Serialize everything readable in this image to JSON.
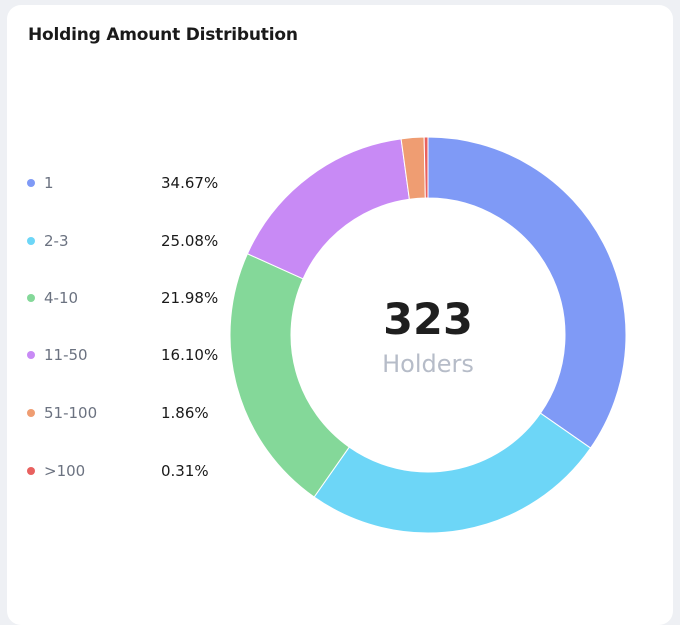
{
  "card": {
    "title": "Holding Amount Distribution"
  },
  "center": {
    "value": "323",
    "label": "Holders"
  },
  "legend": [
    {
      "label": "1",
      "value": "34.67%",
      "color": "#7f9af6"
    },
    {
      "label": "2-3",
      "value": "25.08%",
      "color": "#6dd6f7"
    },
    {
      "label": "4-10",
      "value": "21.98%",
      "color": "#84d899"
    },
    {
      "label": "11-50",
      "value": "16.10%",
      "color": "#c88af5"
    },
    {
      "label": "51-100",
      "value": "1.86%",
      "color": "#ef9d72"
    },
    {
      "label": ">100",
      "value": "0.31%",
      "color": "#e8615f"
    }
  ],
  "chart_data": {
    "type": "pie",
    "title": "Holding Amount Distribution",
    "categories": [
      "1",
      "2-3",
      "4-10",
      "11-50",
      "51-100",
      ">100"
    ],
    "values": [
      34.67,
      25.08,
      21.98,
      16.1,
      1.86,
      0.31
    ],
    "colors": [
      "#7f9af6",
      "#6dd6f7",
      "#84d899",
      "#c88af5",
      "#ef9d72",
      "#e8615f"
    ],
    "total_label": "323",
    "total_caption": "Holders",
    "legend_position": "left",
    "style": "donut"
  }
}
